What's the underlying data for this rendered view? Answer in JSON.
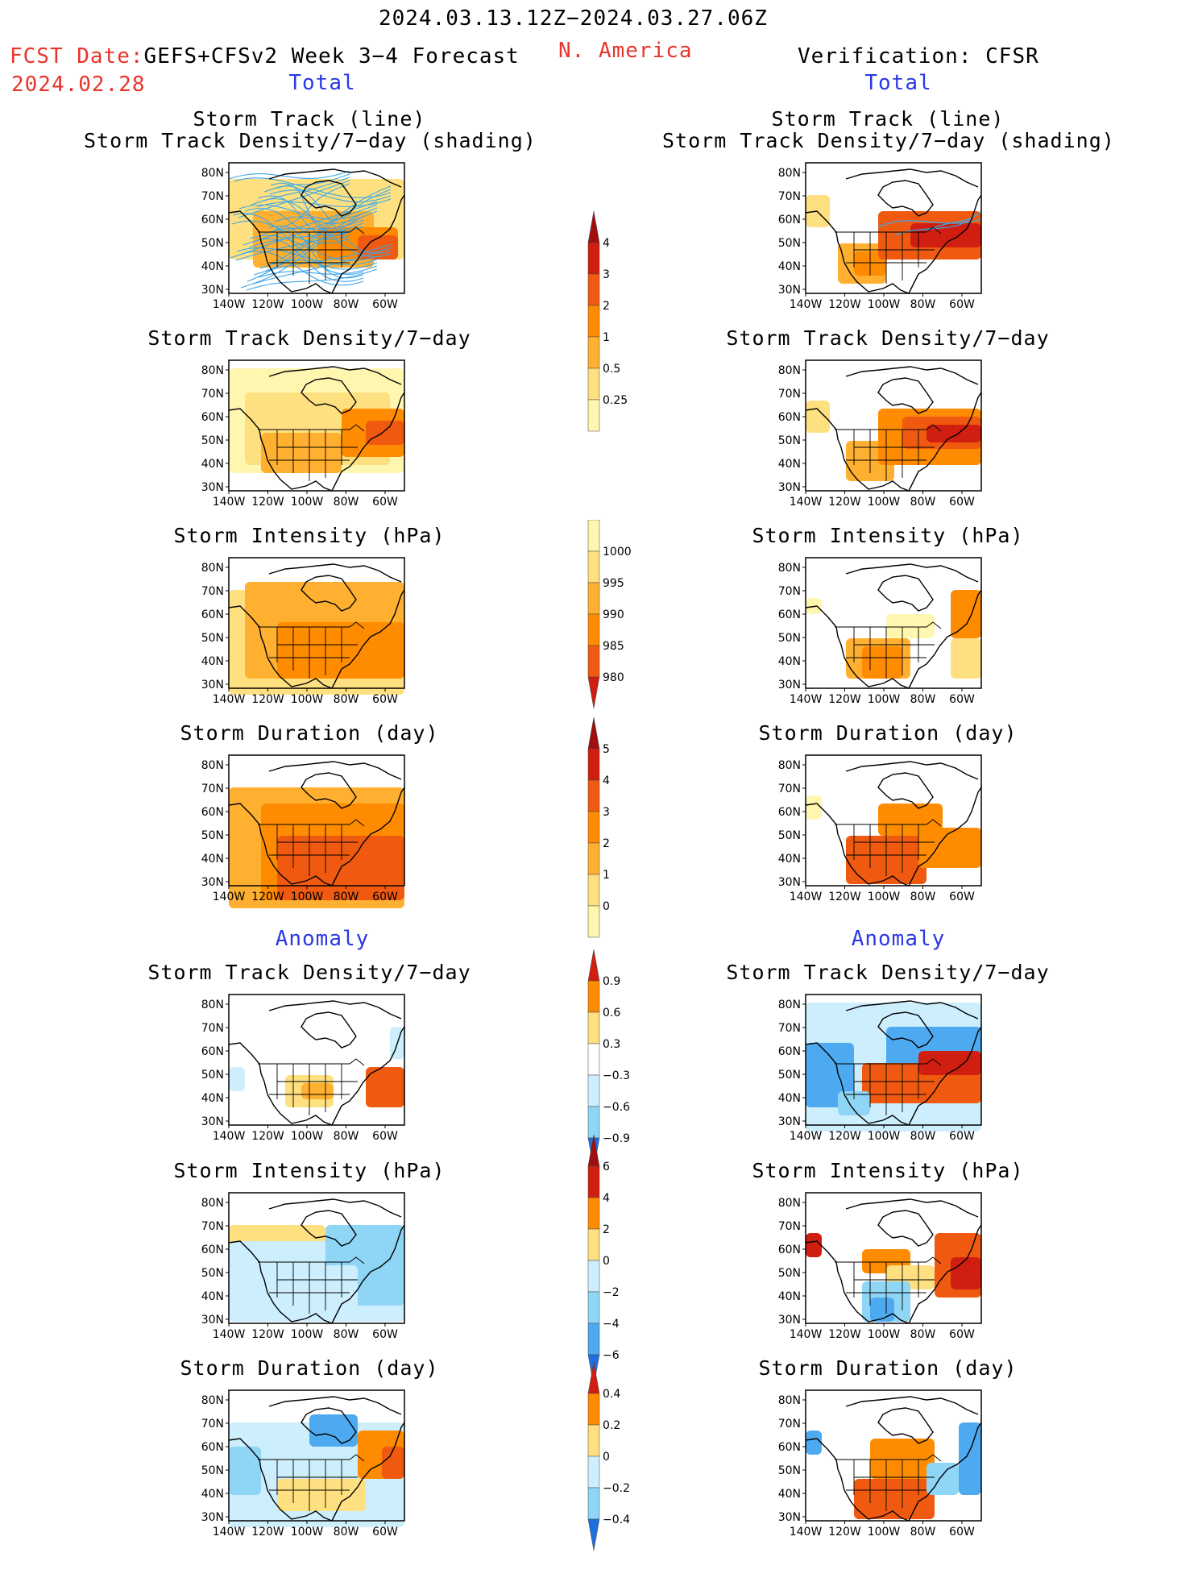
{
  "header": {
    "date_range": "2024.03.13.12Z−2024.03.27.06Z",
    "fcst_date_label": "FCST Date:",
    "fcst_model": "GEFS+CFSv2 Week 3−4 Forecast",
    "fcst_date": "2024.02.28",
    "region": "N. America",
    "verification": "Verification: CFSR"
  },
  "sections": {
    "total_left": "Total",
    "total_right": "Total",
    "anomaly_left": "Anomaly",
    "anomaly_right": "Anomaly"
  },
  "panel_titles": {
    "track_line": "Storm Track (line)",
    "track_shading": "Storm Track Density/7−day (shading)",
    "density": "Storm Track Density/7−day",
    "intensity": "Storm Intensity (hPa)",
    "duration": "Storm Duration (day)"
  },
  "axes": {
    "lat_ticks": [
      "80N",
      "70N",
      "60N",
      "50N",
      "40N",
      "30N"
    ],
    "lon_ticks": [
      "140W",
      "120W",
      "100W",
      "80W",
      "60W"
    ]
  },
  "colorbars": {
    "density_total": [
      "4",
      "3",
      "2",
      "1",
      "0.5",
      "0.25"
    ],
    "intensity_total": [
      "1000",
      "995",
      "990",
      "985",
      "980"
    ],
    "duration_total": [
      "5",
      "4",
      "3",
      "2",
      "1",
      "0"
    ],
    "density_anom": [
      "0.9",
      "0.6",
      "0.3",
      "−0.3",
      "−0.6",
      "−0.9"
    ],
    "intensity_anom": [
      "6",
      "4",
      "2",
      "0",
      "−2",
      "−4",
      "−6"
    ],
    "duration_anom": [
      "0.4",
      "0.2",
      "0",
      "−0.2",
      "−0.4"
    ]
  },
  "palette": {
    "warm": [
      "#fff7b0",
      "#ffe080",
      "#ffb030",
      "#ff8c00",
      "#f05a10",
      "#d01f10",
      "#a00f0f"
    ],
    "cool": [
      "#cdeefd",
      "#8fd6f6",
      "#4eaaf0",
      "#1e6ee0"
    ],
    "track": "#3ba7ea"
  }
}
